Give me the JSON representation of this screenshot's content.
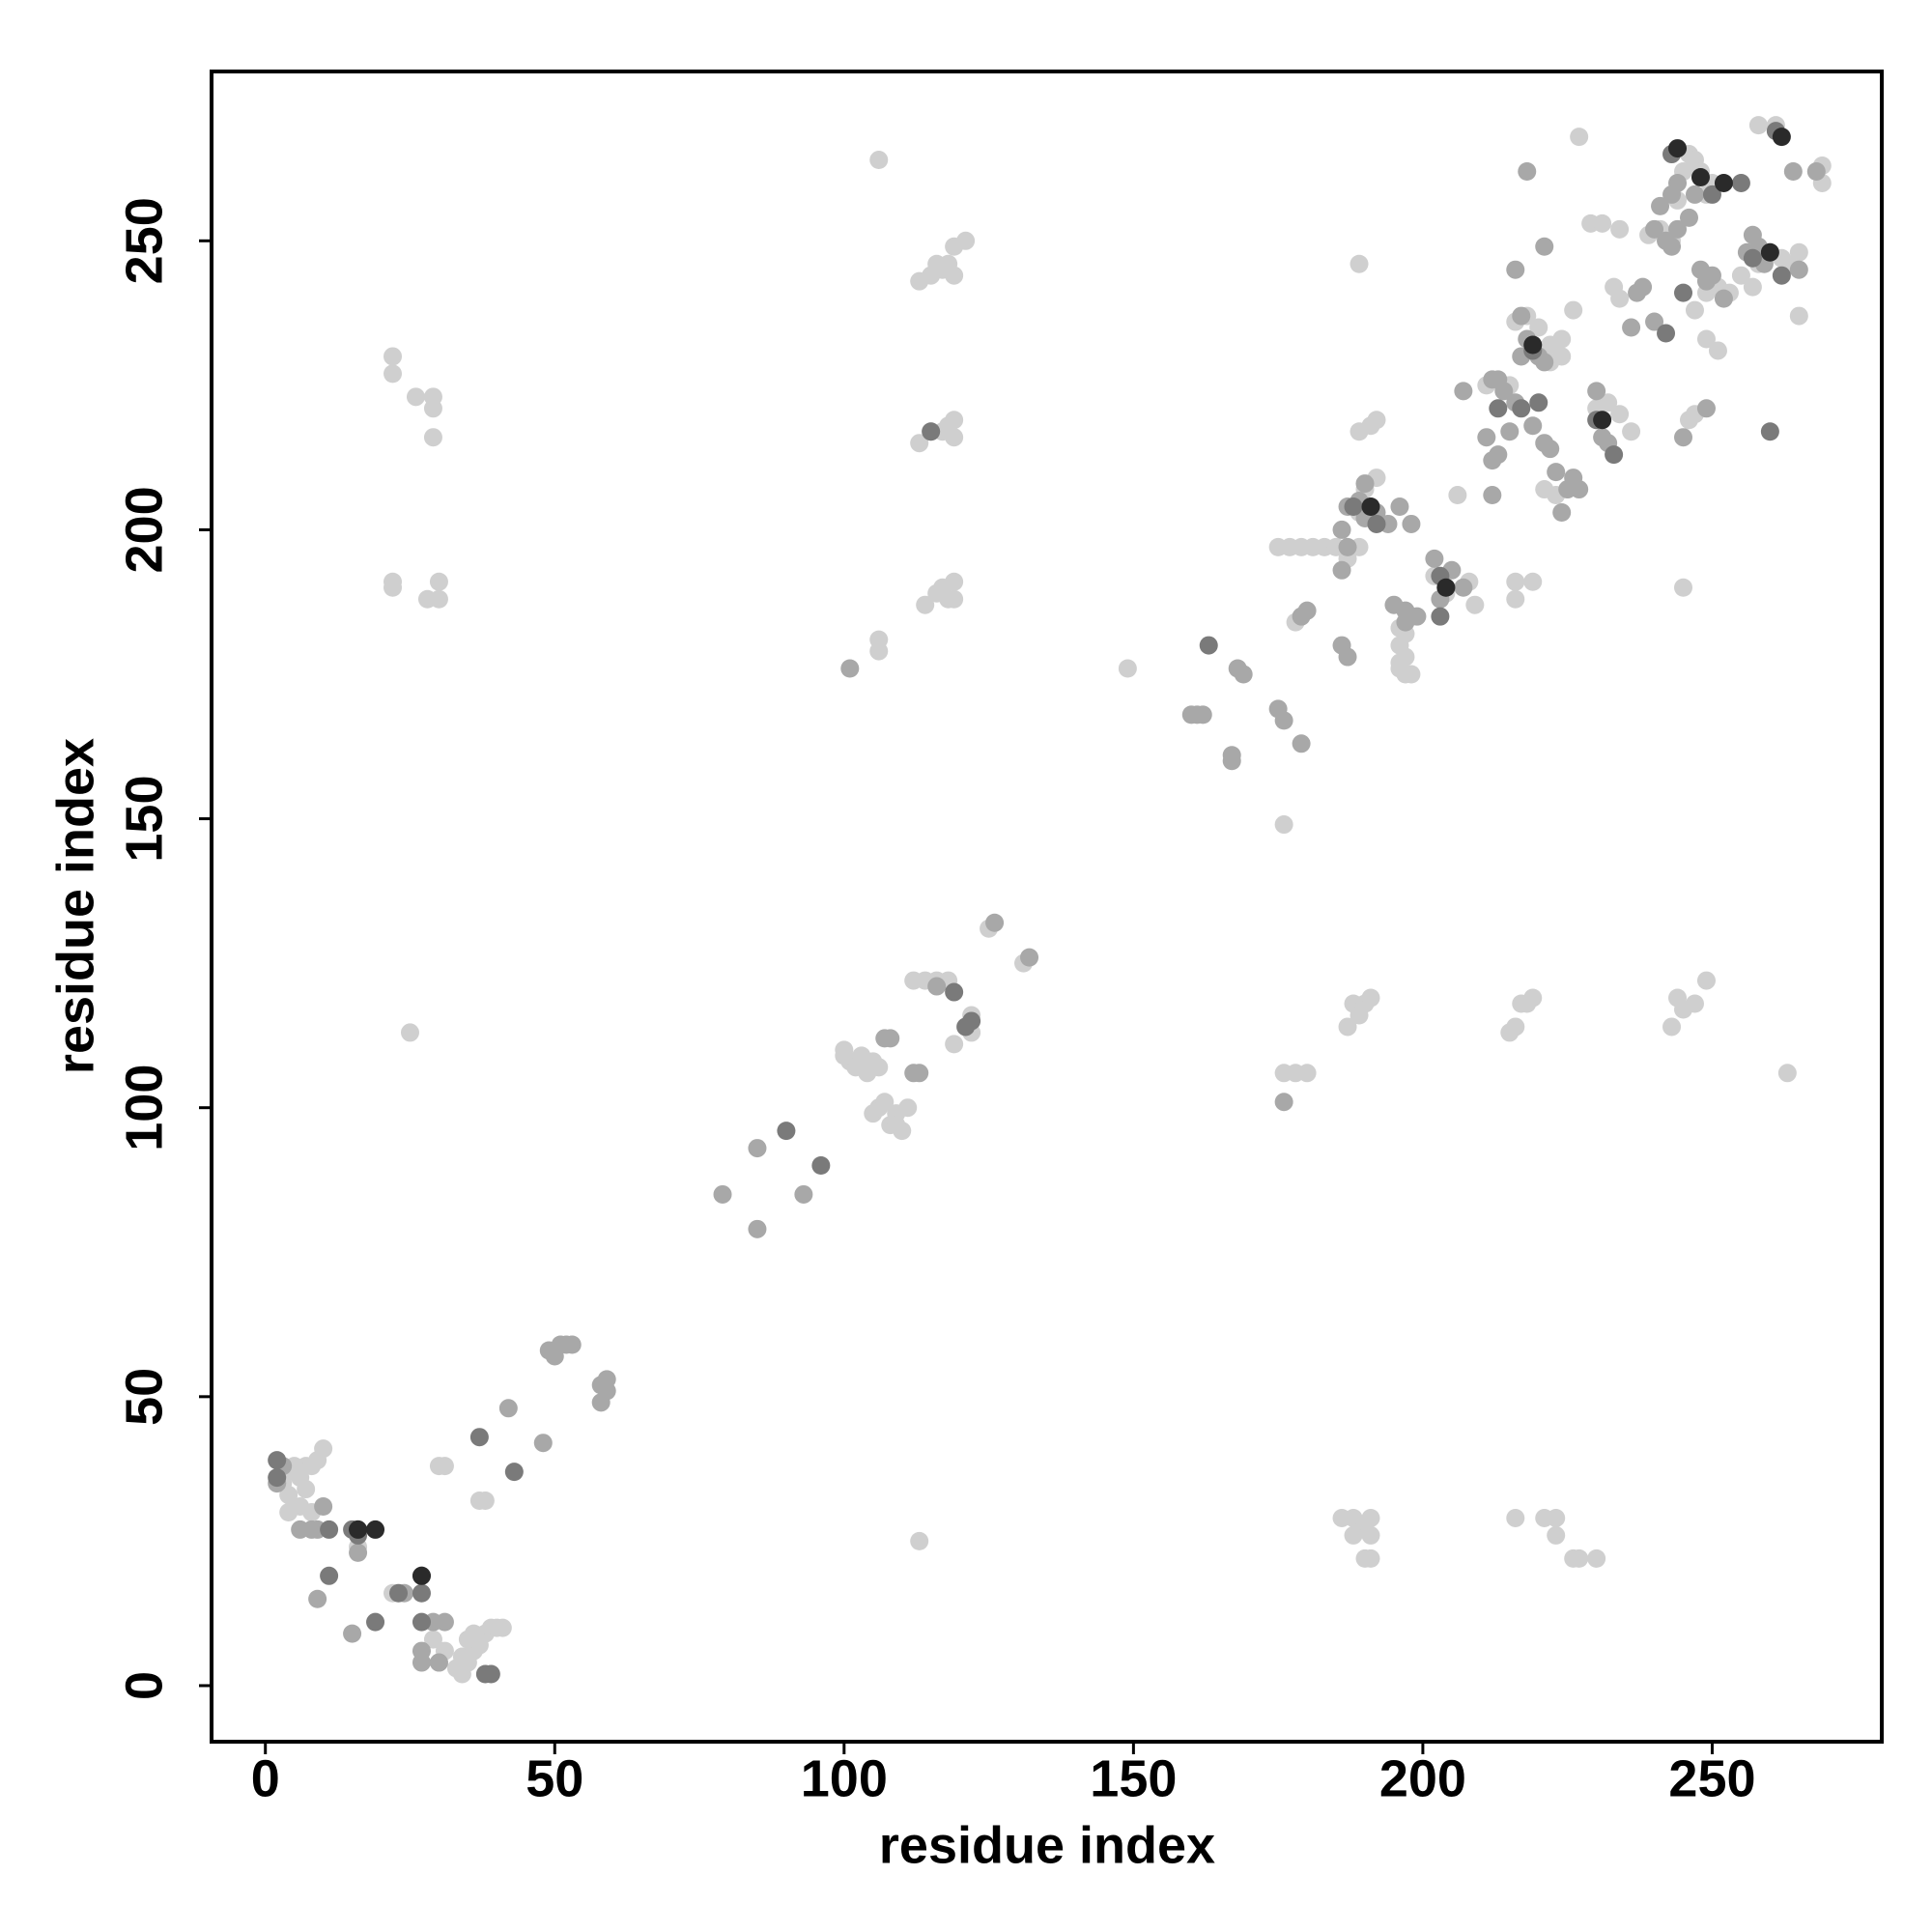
{
  "chart_data": {
    "type": "scatter",
    "x_label": "residue index",
    "y_label": "residue index",
    "xlim": [
      -9.3,
      279.3
    ],
    "ylim": [
      -9.7,
      279.3
    ],
    "xticks": [
      0,
      50,
      100,
      150,
      200,
      250
    ],
    "yticks": [
      0,
      50,
      100,
      150,
      200,
      250
    ],
    "grid": false,
    "series": [
      {
        "color": "#cfcfcf",
        "x": [
          3,
          4,
          5,
          6,
          7,
          8,
          9,
          10,
          4,
          6,
          8,
          5,
          7,
          30,
          31,
          37,
          38,
          34,
          35,
          36,
          37,
          38,
          39,
          40,
          41,
          35,
          36,
          33,
          34,
          30,
          31,
          29,
          22,
          16,
          22,
          22,
          28,
          30,
          30,
          22,
          22,
          26,
          29,
          29,
          29,
          25,
          106,
          106,
          106,
          113,
          115,
          116,
          117,
          118,
          119,
          121,
          119,
          113,
          115,
          117,
          118,
          119,
          119,
          114,
          116,
          117,
          118,
          119,
          119,
          113,
          100,
          101,
          102,
          103,
          104,
          105,
          106,
          100,
          105,
          106,
          107,
          108,
          109,
          110,
          111,
          109,
          112,
          114,
          116,
          118,
          119,
          122,
          122,
          125,
          131,
          149,
          176,
          175,
          177,
          179,
          181,
          183,
          185,
          187,
          189,
          196,
          196,
          196,
          197,
          198,
          196,
          197,
          186,
          188,
          190,
          191,
          188,
          191,
          191,
          190,
          216,
          221,
          223,
          223,
          226,
          227,
          230,
          176,
          178,
          180,
          187,
          188,
          190,
          191,
          189,
          216,
          217,
          218,
          219,
          215,
          243,
          245,
          247,
          249,
          244,
          263,
          216,
          219,
          216,
          189,
          191,
          192,
          189,
          178,
          190,
          192,
          189,
          197,
          202,
          204,
          208,
          209,
          215,
          216,
          218,
          220,
          222,
          224,
          224,
          222,
          230,
          232,
          234,
          236,
          221,
          223,
          227,
          229,
          234,
          231,
          233,
          234,
          239,
          241,
          243,
          244,
          245,
          246,
          247,
          248,
          249,
          250,
          247,
          249,
          251,
          253,
          255,
          257,
          258,
          260,
          262,
          264,
          265,
          258,
          261,
          269,
          269,
          265,
          249,
          251,
          245,
          246,
          247,
          211,
          206,
          226
        ],
        "values": [
          35,
          33,
          37,
          36,
          38,
          38,
          39,
          41,
          30,
          31,
          30,
          38,
          34,
          38,
          38,
          32,
          32,
          5,
          4,
          6,
          7,
          9,
          10,
          10,
          10,
          8,
          9,
          3,
          2,
          4,
          6,
          8,
          16,
          24,
          190,
          191,
          188,
          191,
          188,
          227,
          230,
          223,
          223,
          221,
          216,
          113,
          264,
          181,
          179,
          243,
          244,
          246,
          245,
          246,
          249,
          250,
          244,
          215,
          217,
          217,
          218,
          219,
          216,
          187,
          189,
          190,
          188,
          191,
          188,
          25,
          110,
          108,
          107,
          109,
          106,
          108,
          107,
          109,
          99,
          100,
          101,
          97,
          99,
          96,
          100,
          97,
          122,
          122,
          122,
          122,
          111,
          116,
          113,
          131,
          125,
          176,
          149,
          197,
          197,
          197,
          197,
          197,
          197,
          195,
          197,
          183,
          180,
          177,
          175,
          175,
          176,
          178,
          29,
          29,
          28,
          29,
          26,
          26,
          22,
          22,
          29,
          29,
          29,
          26,
          22,
          22,
          22,
          106,
          106,
          106,
          114,
          118,
          118,
          119,
          116,
          114,
          118,
          118,
          119,
          113,
          114,
          117,
          118,
          122,
          119,
          106,
          191,
          191,
          188,
          217,
          218,
          219,
          246,
          184,
          207,
          209,
          203,
          182,
          192,
          189,
          191,
          187,
          225,
          236,
          237,
          235,
          232,
          233,
          230,
          229,
          221,
          222,
          220,
          217,
          207,
          206,
          268,
          253,
          252,
          253,
          242,
          240,
          251,
          252,
          250,
          257,
          262,
          265,
          264,
          262,
          258,
          260,
          238,
          241,
          242,
          241,
          244,
          242,
          246,
          248,
          247,
          246,
          248,
          270,
          270,
          260,
          263,
          237,
          233,
          231,
          190,
          219,
          220,
          225,
          206,
          238
        ]
      },
      {
        "color": "#a8a8a8",
        "x": [
          3,
          2,
          6,
          8,
          9,
          10,
          9,
          15,
          16,
          24,
          29,
          27,
          27,
          31,
          30,
          48,
          42,
          49,
          50,
          51,
          52,
          53,
          58,
          58,
          59,
          59,
          79,
          85,
          85,
          93,
          107,
          113,
          108,
          112,
          116,
          132,
          126,
          160,
          161,
          162,
          167,
          167,
          168,
          169,
          175,
          176,
          179,
          180,
          186,
          187,
          186,
          187,
          186,
          187,
          189,
          190,
          192,
          194,
          196,
          195,
          197,
          199,
          202,
          203,
          205,
          207,
          212,
          213,
          214,
          213,
          212,
          216,
          217,
          218,
          219,
          220,
          221,
          221,
          222,
          223,
          225,
          226,
          227,
          230,
          231,
          232,
          236,
          237,
          238,
          240,
          240,
          242,
          243,
          244,
          246,
          241,
          243,
          244,
          247,
          248,
          249,
          250,
          252,
          256,
          257,
          258,
          259,
          265,
          264,
          268,
          249,
          245,
          216,
          218,
          221,
          217,
          212,
          219,
          224,
          211,
          207,
          176,
          101,
          179,
          190,
          198,
          197,
          215
        ],
        "values": [
          38,
          35,
          27,
          27,
          27,
          31,
          15,
          9,
          23,
          16,
          11,
          6,
          4,
          11,
          4,
          42,
          48,
          58,
          57,
          59,
          59,
          59,
          49,
          52,
          53,
          51,
          85,
          79,
          93,
          85,
          112,
          106,
          112,
          106,
          121,
          126,
          132,
          168,
          168,
          168,
          161,
          160,
          176,
          175,
          169,
          167,
          163,
          186,
          180,
          178,
          193,
          197,
          200,
          204,
          205,
          208,
          203,
          201,
          204,
          187,
          186,
          185,
          195,
          188,
          193,
          190,
          212,
          213,
          224,
          226,
          226,
          222,
          230,
          233,
          232,
          230,
          229,
          215,
          214,
          210,
          207,
          209,
          207,
          224,
          216,
          215,
          235,
          241,
          242,
          236,
          252,
          250,
          249,
          252,
          254,
          256,
          258,
          260,
          258,
          245,
          243,
          244,
          240,
          248,
          251,
          249,
          246,
          245,
          262,
          262,
          221,
          216,
          245,
          262,
          249,
          237,
          206,
          218,
          203,
          216,
          224,
          101,
          176,
          185,
          202,
          201,
          184,
          217
        ]
      },
      {
        "color": "#7a7a7a",
        "x": [
          2,
          2,
          11,
          15,
          16,
          19,
          23,
          27,
          27,
          37,
          43,
          90,
          96,
          115,
          119,
          122,
          163,
          192,
          203,
          204,
          188,
          219,
          217,
          220,
          230,
          233,
          242,
          243,
          250,
          255,
          261,
          262,
          260,
          245,
          257,
          39,
          38,
          11,
          16,
          27,
          121,
          203,
          213
        ],
        "values": [
          39,
          36,
          27,
          27,
          26,
          11,
          16,
          16,
          11,
          43,
          37,
          96,
          90,
          217,
          120,
          115,
          180,
          201,
          192,
          190,
          204,
          231,
          221,
          222,
          219,
          213,
          234,
          265,
          258,
          260,
          269,
          244,
          217,
          241,
          247,
          2,
          2,
          19,
          27,
          19,
          114,
          185,
          221
        ]
      },
      {
        "color": "#2a2a2a",
        "x": [
          19,
          16,
          27,
          191,
          204,
          219,
          231,
          260,
          252,
          262,
          244,
          248
        ],
        "values": [
          27,
          27,
          19,
          204,
          190,
          232,
          219,
          248,
          260,
          268,
          266,
          261
        ]
      }
    ]
  }
}
